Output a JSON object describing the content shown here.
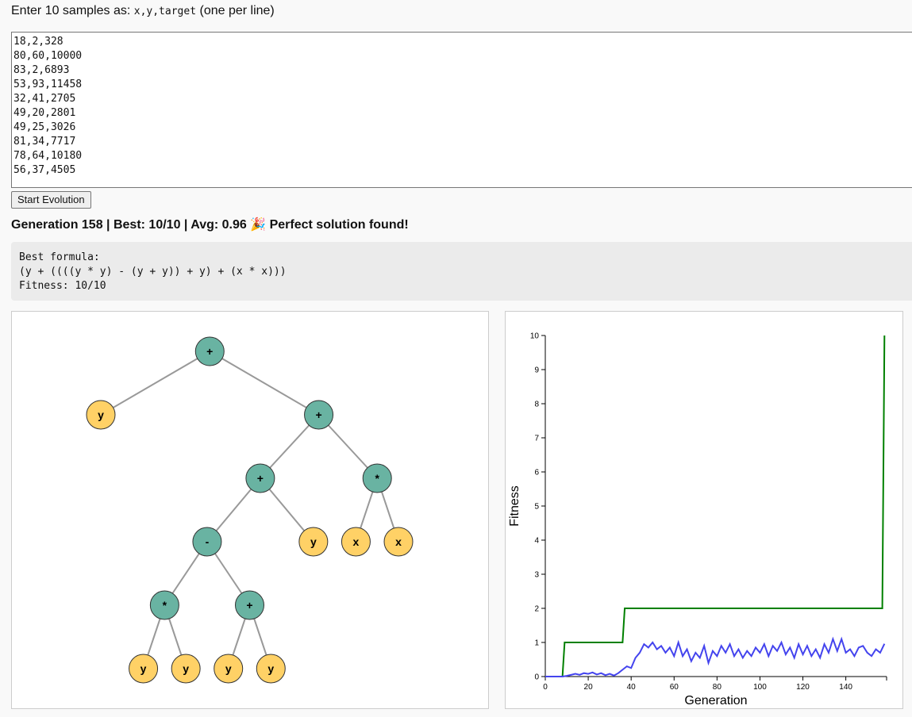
{
  "prompt": {
    "before": "Enter 10 samples as:",
    "code": "x,y,target",
    "after": "(one per line)"
  },
  "samples_text": "18,2,328\n80,60,10000\n83,2,6893\n53,93,11458\n32,41,2705\n49,20,2801\n49,25,3026\n81,34,7717\n78,64,10180\n56,37,4505",
  "start_button": "Start Evolution",
  "status": "Generation 158 | Best: 10/10 | Avg: 0.96 🎉 Perfect solution found!",
  "formula": {
    "heading": "Best formula:",
    "expression": "(y + ((((y * y) - (y + y)) + y) + (x * x)))",
    "fitness": "Fitness: 10/10"
  },
  "colors": {
    "operator_node": "#69b3a2",
    "terminal_node": "#ffd166",
    "best_line": "#008000",
    "avg_line": "#4444ee"
  },
  "tree": {
    "label": "+",
    "type": "op",
    "children": [
      {
        "label": "y",
        "type": "term"
      },
      {
        "label": "+",
        "type": "op",
        "children": [
          {
            "label": "+",
            "type": "op",
            "children": [
              {
                "label": "-",
                "type": "op",
                "children": [
                  {
                    "label": "*",
                    "type": "op",
                    "children": [
                      {
                        "label": "y",
                        "type": "term"
                      },
                      {
                        "label": "y",
                        "type": "term"
                      }
                    ]
                  },
                  {
                    "label": "+",
                    "type": "op",
                    "children": [
                      {
                        "label": "y",
                        "type": "term"
                      },
                      {
                        "label": "y",
                        "type": "term"
                      }
                    ]
                  }
                ]
              },
              {
                "label": "y",
                "type": "term"
              }
            ]
          },
          {
            "label": "*",
            "type": "op",
            "children": [
              {
                "label": "x",
                "type": "term"
              },
              {
                "label": "x",
                "type": "term"
              }
            ]
          }
        ]
      }
    ]
  },
  "chart_data": {
    "type": "line",
    "xlabel": "Generation",
    "ylabel": "Fitness",
    "xlim": [
      0,
      159
    ],
    "ylim": [
      0,
      10
    ],
    "xticks": [
      0,
      20,
      40,
      60,
      80,
      100,
      120,
      140
    ],
    "yticks": [
      0,
      1,
      2,
      3,
      4,
      5,
      6,
      7,
      8,
      9,
      10
    ],
    "series": [
      {
        "values": [
          [
            0,
            0
          ],
          [
            8,
            0
          ],
          [
            9,
            1
          ],
          [
            36,
            1
          ],
          [
            37,
            2
          ],
          [
            157,
            2
          ],
          [
            158,
            10
          ]
        ]
      },
      {
        "values": [
          [
            0,
            0
          ],
          [
            8,
            0
          ],
          [
            10,
            0.02
          ],
          [
            12,
            0.05
          ],
          [
            14,
            0.08
          ],
          [
            16,
            0.05
          ],
          [
            18,
            0.1
          ],
          [
            20,
            0.08
          ],
          [
            22,
            0.12
          ],
          [
            24,
            0.06
          ],
          [
            26,
            0.1
          ],
          [
            28,
            0.04
          ],
          [
            30,
            0.08
          ],
          [
            32,
            0.03
          ],
          [
            34,
            0.1
          ],
          [
            36,
            0.2
          ],
          [
            38,
            0.3
          ],
          [
            40,
            0.25
          ],
          [
            42,
            0.55
          ],
          [
            44,
            0.7
          ],
          [
            46,
            0.95
          ],
          [
            48,
            0.85
          ],
          [
            50,
            1.0
          ],
          [
            52,
            0.8
          ],
          [
            54,
            0.9
          ],
          [
            56,
            0.7
          ],
          [
            58,
            0.85
          ],
          [
            60,
            0.6
          ],
          [
            62,
            1.0
          ],
          [
            64,
            0.6
          ],
          [
            66,
            0.8
          ],
          [
            68,
            0.45
          ],
          [
            70,
            0.7
          ],
          [
            72,
            0.55
          ],
          [
            74,
            0.9
          ],
          [
            76,
            0.4
          ],
          [
            78,
            0.75
          ],
          [
            80,
            0.6
          ],
          [
            82,
            0.9
          ],
          [
            84,
            0.7
          ],
          [
            86,
            0.95
          ],
          [
            88,
            0.6
          ],
          [
            90,
            0.8
          ],
          [
            92,
            0.55
          ],
          [
            94,
            0.75
          ],
          [
            96,
            0.6
          ],
          [
            98,
            0.85
          ],
          [
            100,
            0.7
          ],
          [
            102,
            0.95
          ],
          [
            104,
            0.6
          ],
          [
            106,
            0.9
          ],
          [
            108,
            0.75
          ],
          [
            110,
            1.0
          ],
          [
            112,
            0.65
          ],
          [
            114,
            0.85
          ],
          [
            116,
            0.55
          ],
          [
            118,
            0.95
          ],
          [
            120,
            0.65
          ],
          [
            122,
            0.9
          ],
          [
            124,
            0.6
          ],
          [
            126,
            0.8
          ],
          [
            128,
            0.55
          ],
          [
            130,
            0.95
          ],
          [
            132,
            0.7
          ],
          [
            134,
            1.1
          ],
          [
            136,
            0.75
          ],
          [
            138,
            1.1
          ],
          [
            140,
            0.7
          ],
          [
            142,
            0.8
          ],
          [
            144,
            0.6
          ],
          [
            146,
            0.85
          ],
          [
            148,
            0.9
          ],
          [
            150,
            0.7
          ],
          [
            152,
            0.6
          ],
          [
            154,
            0.8
          ],
          [
            156,
            0.7
          ],
          [
            158,
            0.96
          ]
        ]
      }
    ]
  }
}
